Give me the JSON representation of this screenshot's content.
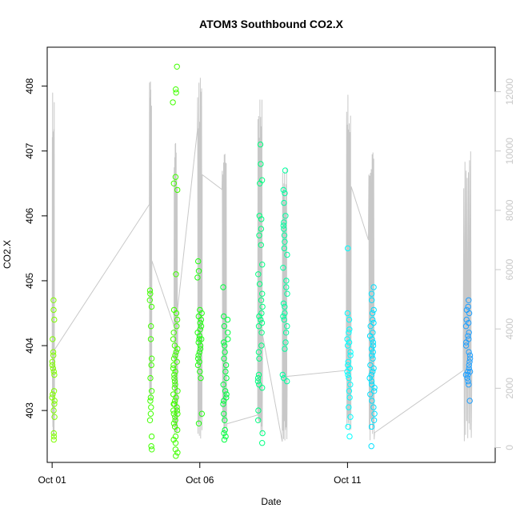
{
  "chart_data": {
    "type": "scatter",
    "title": "ATOM3 Southbound CO2.X",
    "xlabel": "Date",
    "ylabel": "CO2.X",
    "x_unit": "date",
    "xlim": [
      "2015-09-30T20:00",
      "2015-10-16T00:00"
    ],
    "ylim": [
      402.2,
      408.6
    ],
    "y2lim": [
      -500,
      13500
    ],
    "x_ticks": [
      {
        "date": "2015-10-01T00:00",
        "label": "Oct 01"
      },
      {
        "date": "2015-10-06T00:00",
        "label": "Oct 06"
      },
      {
        "date": "2015-10-11T00:00",
        "label": "Oct 11"
      }
    ],
    "y_ticks": [
      403,
      404,
      405,
      406,
      407,
      408
    ],
    "y2_ticks": [
      0,
      2000,
      4000,
      6000,
      8000,
      10000,
      12000
    ],
    "grid": false,
    "colors": {
      "secondary_line": "#c8c8c8",
      "clusters": [
        "#80ff00",
        "#40ff00",
        "#20ff10",
        "#00ff40",
        "#00ff80",
        "#00ffa0",
        "#00ffc0",
        "#00ffff",
        "#00e0ff",
        "#20a0ff"
      ]
    },
    "secondary_series": {
      "name": "",
      "axis": "right",
      "segments": [
        {
          "start": "2015-10-01T00:00",
          "end": "2015-10-01T02:00",
          "low": 300,
          "high": 12100,
          "entry": 3000,
          "exit": 3300
        },
        {
          "start": "2015-10-04T07:00",
          "end": "2015-10-04T09:00",
          "low": 1500,
          "high": 12400,
          "entry": 8200,
          "exit": 6300
        },
        {
          "start": "2015-10-05T03:00",
          "end": "2015-10-05T06:00",
          "low": 100,
          "high": 10300,
          "entry": 4100,
          "exit": 4700
        },
        {
          "start": "2015-10-05T22:00",
          "end": "2015-10-06T02:00",
          "low": 200,
          "high": 12500,
          "entry": 10700,
          "exit": 9200
        },
        {
          "start": "2015-10-06T18:00",
          "end": "2015-10-06T22:00",
          "low": 200,
          "high": 10000,
          "entry": 8700,
          "exit": 800
        },
        {
          "start": "2015-10-07T23:00",
          "end": "2015-10-08T03:00",
          "low": 200,
          "high": 12200,
          "entry": 1100,
          "exit": 3800
        },
        {
          "start": "2015-10-08T19:00",
          "end": "2015-10-08T23:00",
          "low": 200,
          "high": 9500,
          "entry": 200,
          "exit": 2400
        },
        {
          "start": "2015-10-10T23:00",
          "end": "2015-10-11T03:00",
          "low": 200,
          "high": 11900,
          "entry": 2600,
          "exit": 8800
        },
        {
          "start": "2015-10-11T17:00",
          "end": "2015-10-11T22:00",
          "low": 200,
          "high": 10000,
          "entry": 7000,
          "exit": 500
        },
        {
          "start": "2015-10-14T22:00",
          "end": "2015-10-15T05:00",
          "low": 200,
          "high": 10200,
          "entry": 2600,
          "exit": 2600
        }
      ]
    },
    "clusters": [
      {
        "date": "2015-10-01T01:00",
        "spread_hours": 2,
        "color_index": 0,
        "values": [
          402.6,
          402.55,
          402.65,
          402.9,
          403.0,
          403.1,
          403.15,
          403.2,
          403.25,
          403.3,
          403.55,
          403.6,
          403.65,
          403.7,
          403.75,
          403.85,
          403.9,
          404.1,
          404.4,
          404.55,
          404.7
        ]
      },
      {
        "date": "2015-10-04T08:00",
        "spread_hours": 2,
        "color_index": 1,
        "values": [
          402.4,
          402.45,
          402.6,
          402.85,
          402.95,
          403.05,
          403.15,
          403.2,
          403.3,
          403.5,
          403.7,
          403.8,
          404.1,
          404.3,
          404.6,
          404.7,
          404.8,
          404.85
        ]
      },
      {
        "date": "2015-10-05T04:00",
        "spread_hours": 4,
        "color_index": 1,
        "values": [
          402.3,
          402.35,
          402.4,
          402.5,
          402.55,
          402.6,
          402.7,
          402.75,
          402.8,
          402.85,
          402.9,
          402.95,
          402.95,
          403.0,
          403.0,
          403.05,
          403.1,
          403.1,
          403.15,
          403.2,
          403.25,
          403.3,
          403.35,
          403.4,
          403.45,
          403.5,
          403.55,
          403.6,
          403.65,
          403.7,
          403.75,
          403.8,
          403.85,
          403.9,
          403.95,
          404.0,
          404.1,
          404.2,
          404.3,
          404.4,
          404.5,
          404.55,
          405.1,
          406.4,
          406.5,
          406.6,
          407.75,
          407.9,
          407.95,
          408.3
        ]
      },
      {
        "date": "2015-10-06T00:00",
        "spread_hours": 4,
        "color_index": 2,
        "values": [
          402.8,
          402.95,
          403.5,
          403.6,
          403.7,
          403.75,
          403.8,
          403.85,
          403.9,
          403.95,
          404.0,
          404.05,
          404.1,
          404.1,
          404.15,
          404.2,
          404.25,
          404.3,
          404.35,
          404.4,
          404.45,
          404.5,
          404.55,
          405.05,
          405.15,
          405.3
        ]
      },
      {
        "date": "2015-10-06T21:00",
        "spread_hours": 4,
        "color_index": 3,
        "values": [
          402.55,
          402.6,
          402.65,
          402.7,
          402.85,
          402.95,
          403.1,
          403.15,
          403.2,
          403.25,
          403.3,
          403.4,
          403.5,
          403.6,
          403.7,
          403.8,
          403.9,
          404.0,
          404.05,
          404.1,
          404.2,
          404.3,
          404.4,
          404.45,
          404.9
        ]
      },
      {
        "date": "2015-10-08T01:00",
        "spread_hours": 4,
        "color_index": 4,
        "values": [
          402.5,
          402.65,
          402.85,
          403.0,
          403.35,
          403.4,
          403.45,
          403.5,
          403.55,
          403.8,
          403.9,
          404.0,
          404.2,
          404.3,
          404.35,
          404.4,
          404.45,
          404.5,
          404.6,
          404.7,
          404.8,
          404.95,
          405.1,
          405.25,
          405.55,
          405.7,
          405.8,
          405.95,
          406.0,
          406.5,
          406.55,
          406.8,
          407.1
        ]
      },
      {
        "date": "2015-10-08T21:00",
        "spread_hours": 4,
        "color_index": 5,
        "values": [
          403.45,
          403.5,
          403.55,
          403.95,
          404.05,
          404.2,
          404.3,
          404.4,
          404.45,
          404.5,
          404.6,
          404.65,
          404.8,
          404.9,
          405.0,
          405.2,
          405.4,
          405.5,
          405.6,
          405.7,
          405.8,
          405.85,
          405.9,
          406.0,
          406.2,
          406.35,
          406.4,
          406.7
        ]
      },
      {
        "date": "2015-10-11T01:00",
        "spread_hours": 3,
        "color_index": 7,
        "values": [
          402.6,
          402.75,
          402.9,
          403.05,
          403.2,
          403.3,
          403.4,
          403.5,
          403.55,
          403.6,
          403.65,
          403.7,
          403.75,
          403.85,
          403.9,
          404.0,
          404.05,
          404.1,
          404.2,
          404.25,
          404.4,
          404.5,
          405.5
        ]
      },
      {
        "date": "2015-10-11T20:00",
        "spread_hours": 4,
        "color_index": 8,
        "values": [
          402.45,
          402.75,
          402.85,
          402.95,
          403.05,
          403.15,
          403.25,
          403.3,
          403.35,
          403.4,
          403.45,
          403.5,
          403.55,
          403.6,
          403.65,
          403.7,
          403.8,
          403.85,
          403.9,
          403.95,
          404.0,
          404.05,
          404.1,
          404.15,
          404.2,
          404.3,
          404.35,
          404.4,
          404.5,
          404.55,
          404.7,
          404.8,
          404.9
        ]
      },
      {
        "date": "2015-10-15T02:00",
        "spread_hours": 4,
        "color_index": 9,
        "values": [
          403.15,
          403.4,
          403.45,
          403.5,
          403.55,
          403.55,
          403.6,
          403.6,
          403.65,
          403.7,
          403.75,
          403.8,
          403.85,
          403.9,
          404.0,
          404.05,
          404.1,
          404.15,
          404.2,
          404.3,
          404.35,
          404.4,
          404.5,
          404.55,
          404.6,
          404.7
        ]
      }
    ]
  }
}
